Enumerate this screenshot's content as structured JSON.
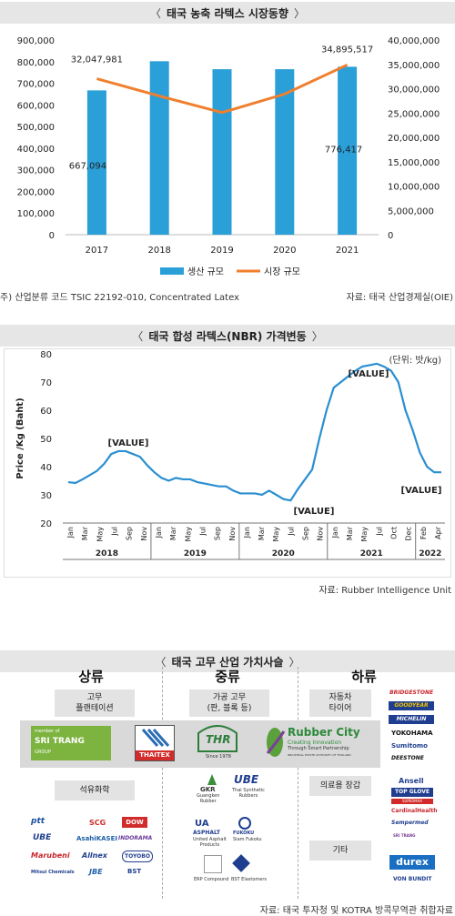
{
  "section1": {
    "title": "태국 농축 라텍스 시장동향",
    "note_left": "주) 산업분류 코드 TSIC 22192-010, Concentrated Latex",
    "note_right": "자료: 태국 산업경제실(OIE)",
    "chart_data": {
      "type": "bar",
      "categories": [
        "2017",
        "2018",
        "2019",
        "2020",
        "2021"
      ],
      "series": [
        {
          "name": "생산 규모",
          "type": "bar",
          "axis": "left",
          "color": "#2a9fd8",
          "values": [
            667094,
            802000,
            765000,
            765000,
            776417
          ]
        },
        {
          "name": "시장 규모",
          "type": "line",
          "axis": "right",
          "color": "#f07f2e",
          "values": [
            32047981,
            28500000,
            25100000,
            28900000,
            34895517
          ]
        }
      ],
      "data_labels": [
        "32,047,981",
        "667,094",
        "34,895,517",
        "776,417"
      ],
      "ylim_left": [
        0,
        900000
      ],
      "ylim_right": [
        0,
        40000000
      ],
      "yticks_left": [
        "900,000",
        "800,000",
        "700,000",
        "600,000",
        "500,000",
        "400,000",
        "300,000",
        "200,000",
        "100,000",
        "0"
      ],
      "yticks_right": [
        "40,000,000",
        "35,000,000",
        "30,000,000",
        "25,000,000",
        "20,000,000",
        "15,000,000",
        "10,000,000",
        "5,000,000",
        "0"
      ],
      "legend_position": "bottom"
    }
  },
  "section2": {
    "title": "태국 합성 라텍스(NBR) 가격변동",
    "unit": "(단위: 밧/kg)",
    "note_right": "자료: Rubber Intelligence Unit",
    "chart_data": {
      "type": "line",
      "ylabel": "Price /Kg (Baht)",
      "ylim": [
        20,
        80
      ],
      "yticks": [
        "80",
        "70",
        "60",
        "50",
        "40",
        "30",
        "20"
      ],
      "month_ticks": [
        "Jan",
        "Mar",
        "May",
        "Jul",
        "Sep",
        "Nov",
        "Jan",
        "Mar",
        "May",
        "Jul",
        "Sep",
        "Nov",
        "Jan",
        "Mar",
        "May",
        "Jul",
        "Sep",
        "Nov",
        "Jan",
        "Mar",
        "May",
        "Jul",
        "Oct",
        "Dec",
        "Feb",
        "Apr"
      ],
      "year_labels": [
        "2018",
        "2019",
        "2020",
        "2021",
        "2022"
      ],
      "annotations": [
        "[VALUE]",
        "[VALUE]",
        "[VALUE]",
        "[VALUE]"
      ],
      "color": "#2a8fd0",
      "series": [
        {
          "values": [
            34.5,
            34.2,
            35.5,
            37,
            38.5,
            41,
            44.5,
            45.5,
            45.5,
            44.5,
            43.5,
            40.5,
            38,
            36,
            35,
            36,
            35.5,
            35.5,
            34.5,
            34,
            33.5,
            33,
            33,
            31.5,
            30.5,
            30.5,
            30.5,
            30,
            31.5,
            30,
            28.5,
            28,
            32,
            35.5,
            39,
            50,
            60,
            68,
            70,
            72,
            74,
            75.5,
            76,
            76.5,
            75.5,
            74,
            70,
            60,
            53,
            45,
            40,
            38,
            38
          ]
        }
      ]
    }
  },
  "section3": {
    "title": "태국 고무 산업 가치사슬",
    "source": "자료: 태국 투자청 및 KOTRA 방콕무역관 취합자료",
    "columns": {
      "up": "상류",
      "mid": "중류",
      "down": "하류"
    },
    "boxes": {
      "plantation": "고무\n플랜테이션",
      "petro": "석유화학",
      "processed": "가공 고무\n(판, 블록 등)",
      "auto": "자동차\n타이어",
      "medical": "의료용 장갑",
      "other": "기타"
    },
    "logos": {
      "sritrang_top": "member of",
      "sritrang": "SRI TRANG",
      "sritrang_sub": "GROUP",
      "thaitex": "THAITEX",
      "thr": "THR",
      "thr_sub": "Since 1978",
      "rubbercity": "Rubber City",
      "rubbercity_sub1": "Creating Innovation",
      "rubbercity_sub2": "Through Smart Partnership",
      "rubbercity_sub3": "INDUSTRIAL ESTATE AUTHORITY OF THAILAND",
      "gkr": "GKR",
      "gkr_sub": "Guangken\nRubber",
      "ube1": "UBE",
      "ube1_sub": "Thai Synthetic\nRubbers",
      "asphalt": "ASPHALT",
      "asphalt_sub": "United Asphalt\nProducts",
      "fukoku": "FUKOKU",
      "fukoku_sub": "Siam Fukoku",
      "erp": "ERP Compound",
      "bst": "BST Elastomers",
      "ptt": "ptt",
      "scg": "SCG",
      "dow": "DOW",
      "ube2": "UBE",
      "asahi": "AsahiKASEI",
      "indorama": "INDORAMA",
      "marubeni": "Marubeni",
      "allnex": "Allnex",
      "toyobo": "TOYOBO",
      "mitsui": "Mitsui Chemicals",
      "jbe": "JBE",
      "bst2": "BST",
      "bridgestone": "BRIDGESTONE",
      "goodyear": "GOODYEAR",
      "michelin": "MICHELIN",
      "yokohama": "YOKOHAMA",
      "sumitomo": "Sumitomo",
      "deestone": "DEESTONE",
      "ansell": "Ansell",
      "topglove": "TOP GLOVE",
      "supermax": "SUPERMAX",
      "cardinal": "CardinalHealth",
      "semperned": "Sempermed",
      "sritrang2": "SRI TRANG",
      "durex": "durex",
      "vonbundit": "VON BUNDIT"
    }
  }
}
